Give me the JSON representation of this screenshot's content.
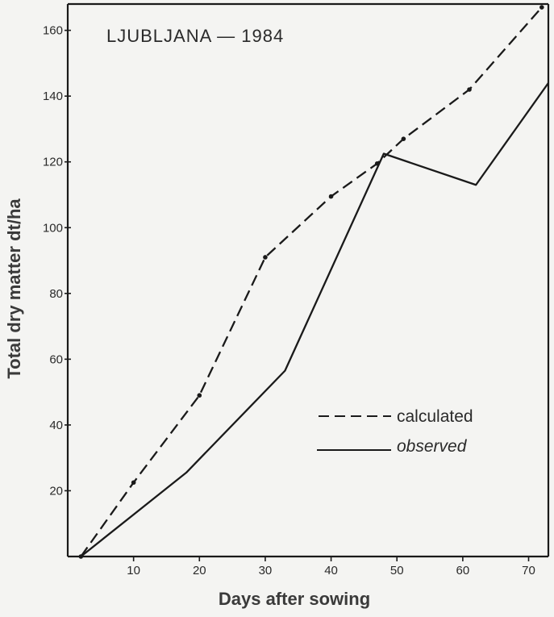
{
  "chart_data": {
    "type": "line",
    "title": "LJUBLJANA — 1984",
    "xlabel": "Days after sowing",
    "ylabel": "Total dry matter dt/ha",
    "xlim": [
      0,
      73
    ],
    "ylim": [
      0,
      168
    ],
    "xticks": [
      10,
      20,
      30,
      40,
      50,
      60,
      70
    ],
    "yticks": [
      20,
      40,
      60,
      80,
      100,
      120,
      140,
      160
    ],
    "legend_position": "center-right",
    "series": [
      {
        "name": "calculated",
        "style": "dashed",
        "markers": true,
        "color": "#1a1a1a",
        "x": [
          2,
          10,
          20,
          30,
          40,
          47,
          51,
          61,
          72
        ],
        "y": [
          0,
          22.5,
          49,
          91,
          109.5,
          119.5,
          127,
          142,
          167
        ]
      },
      {
        "name": "observed",
        "style": "solid",
        "markers": false,
        "color": "#1a1a1a",
        "x": [
          2,
          18,
          33,
          48,
          62,
          73
        ],
        "y": [
          0,
          25.5,
          56.5,
          122.5,
          113,
          144
        ]
      }
    ]
  }
}
